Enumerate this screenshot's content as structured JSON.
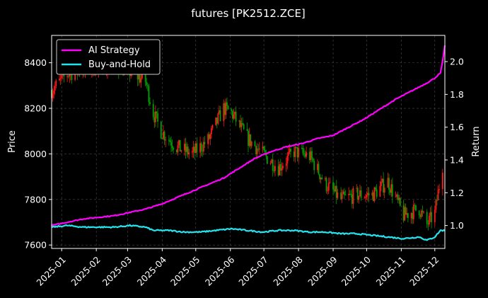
{
  "chart_data": {
    "type": "line",
    "title": "futures [PK2512.ZCE]",
    "ylabel_left": "Price",
    "ylabel_right": "Return",
    "x_range": [
      "2024-12-23",
      "2025-12-10"
    ],
    "x_tick_labels": [
      "2025-01",
      "2025-02",
      "2025-03",
      "2025-04",
      "2025-05",
      "2025-06",
      "2025-07",
      "2025-08",
      "2025-09",
      "2025-10",
      "2025-11",
      "2025-12"
    ],
    "ylim_left": [
      7585,
      8520
    ],
    "y_ticks_left": [
      7600,
      7800,
      8000,
      8200,
      8400
    ],
    "ylim_right": [
      0.86,
      2.16
    ],
    "y_ticks_right": [
      1.0,
      1.2,
      1.4,
      1.6,
      1.8,
      2.0
    ],
    "grid": true,
    "legend_position": "top-left",
    "colors": {
      "background": "#000000",
      "ai": "#ff00ff",
      "bh": "#22e5f0",
      "candle_up": "#ff1a1a",
      "candle_down": "#00a000",
      "grid": "#4a4a4a",
      "spine": "#ffffff"
    },
    "price_series": {
      "name": "price",
      "dates": [
        "2024-12-23",
        "2025-01-06",
        "2025-01-20",
        "2025-02-03",
        "2025-02-17",
        "2025-03-03",
        "2025-03-17",
        "2025-03-24",
        "2025-03-31",
        "2025-04-14",
        "2025-04-28",
        "2025-05-12",
        "2025-05-26",
        "2025-06-02",
        "2025-06-16",
        "2025-06-30",
        "2025-07-14",
        "2025-07-28",
        "2025-08-11",
        "2025-08-25",
        "2025-09-08",
        "2025-09-22",
        "2025-10-06",
        "2025-10-20",
        "2025-11-03",
        "2025-11-17",
        "2025-11-24",
        "2025-12-01",
        "2025-12-08"
      ],
      "values": [
        8280,
        8350,
        8370,
        8380,
        8390,
        8360,
        8320,
        8180,
        8100,
        8030,
        8000,
        8060,
        8200,
        8180,
        8070,
        8000,
        7940,
        8010,
        7990,
        7870,
        7800,
        7820,
        7820,
        7880,
        7730,
        7760,
        7690,
        7740,
        7950
      ]
    },
    "series": [
      {
        "name": "AI Strategy",
        "dates": [
          "2024-12-23",
          "2025-01-06",
          "2025-01-20",
          "2025-02-03",
          "2025-02-17",
          "2025-03-03",
          "2025-03-17",
          "2025-03-31",
          "2025-04-14",
          "2025-04-28",
          "2025-05-12",
          "2025-05-26",
          "2025-06-09",
          "2025-06-23",
          "2025-07-07",
          "2025-07-21",
          "2025-08-04",
          "2025-08-18",
          "2025-09-01",
          "2025-09-15",
          "2025-09-29",
          "2025-10-13",
          "2025-10-27",
          "2025-11-10",
          "2025-11-24",
          "2025-12-01",
          "2025-12-06",
          "2025-12-08",
          "2025-12-10"
        ],
        "values": [
          1.0,
          1.02,
          1.04,
          1.05,
          1.06,
          1.08,
          1.1,
          1.13,
          1.17,
          1.21,
          1.25,
          1.29,
          1.35,
          1.41,
          1.45,
          1.48,
          1.5,
          1.53,
          1.55,
          1.6,
          1.65,
          1.71,
          1.77,
          1.82,
          1.87,
          1.9,
          1.93,
          2.0,
          2.1
        ]
      },
      {
        "name": "Buy-and-Hold",
        "dates": [
          "2024-12-23",
          "2025-01-06",
          "2025-01-20",
          "2025-02-03",
          "2025-02-17",
          "2025-03-03",
          "2025-03-17",
          "2025-03-24",
          "2025-04-07",
          "2025-04-21",
          "2025-05-05",
          "2025-05-19",
          "2025-06-02",
          "2025-06-16",
          "2025-06-30",
          "2025-07-14",
          "2025-07-28",
          "2025-08-11",
          "2025-08-25",
          "2025-09-08",
          "2025-09-22",
          "2025-10-06",
          "2025-10-20",
          "2025-11-03",
          "2025-11-17",
          "2025-11-24",
          "2025-12-01",
          "2025-12-06",
          "2025-12-10"
        ],
        "values": [
          0.99,
          1.0,
          0.99,
          0.99,
          0.99,
          1.0,
          0.99,
          0.97,
          0.97,
          0.96,
          0.96,
          0.97,
          0.98,
          0.97,
          0.96,
          0.97,
          0.97,
          0.96,
          0.96,
          0.95,
          0.95,
          0.94,
          0.93,
          0.92,
          0.93,
          0.91,
          0.93,
          0.97,
          0.97
        ]
      }
    ]
  }
}
